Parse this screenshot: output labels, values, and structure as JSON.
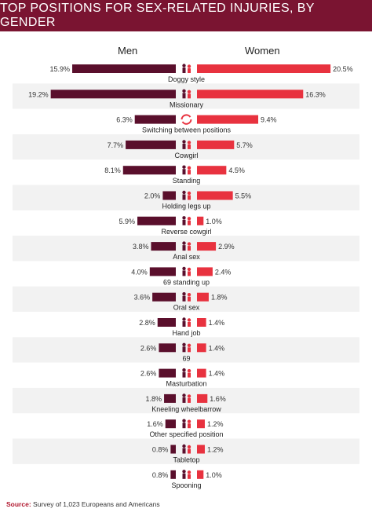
{
  "title": "Top positions for sex-related injuries, by gender",
  "source": {
    "label": "Source:",
    "text": "Survey of 1,023 Europeans and Americans"
  },
  "colors": {
    "men": "#5a0f2c",
    "women": "#e8323f",
    "title_bg": "#7a1431",
    "stripe": "#f2f2f2"
  },
  "chart_data": {
    "type": "bar",
    "title": "Top positions for sex-related injuries, by gender",
    "xlabel": "",
    "ylabel": "",
    "unit": "%",
    "xlim": [
      0,
      21
    ],
    "categories": [
      "Doggy style",
      "Missionary",
      "Switching between positions",
      "Cowgirl",
      "Standing",
      "Holding legs up",
      "Reverse cowgirl",
      "Anal sex",
      "69 standing up",
      "Oral sex",
      "Hand job",
      "69",
      "Masturbation",
      "Kneeling wheelbarrow",
      "Other specified position",
      "Tabletop",
      "Spooning"
    ],
    "series": [
      {
        "name": "Men",
        "values": [
          15.9,
          19.2,
          6.3,
          7.7,
          8.1,
          2.0,
          5.9,
          3.8,
          4.0,
          3.6,
          2.8,
          2.6,
          2.6,
          1.8,
          1.6,
          0.8,
          0.8
        ]
      },
      {
        "name": "Women",
        "values": [
          20.5,
          16.3,
          9.4,
          5.7,
          4.5,
          5.5,
          1.0,
          2.9,
          2.4,
          1.8,
          1.4,
          1.4,
          1.4,
          1.6,
          1.2,
          1.2,
          1.0
        ]
      }
    ],
    "icons": [
      "doggy-style-icon",
      "missionary-icon",
      "switch-arrows-icon",
      "cowgirl-icon",
      "standing-icon",
      "holding-legs-icon",
      "reverse-cowgirl-icon",
      "anal-sex-icon",
      "standing-69-icon",
      "oral-sex-icon",
      "hand-job-icon",
      "sixty-nine-icon",
      "masturbation-icon",
      "wheelbarrow-icon",
      "other-position-icon",
      "tabletop-icon",
      "spooning-icon"
    ]
  }
}
